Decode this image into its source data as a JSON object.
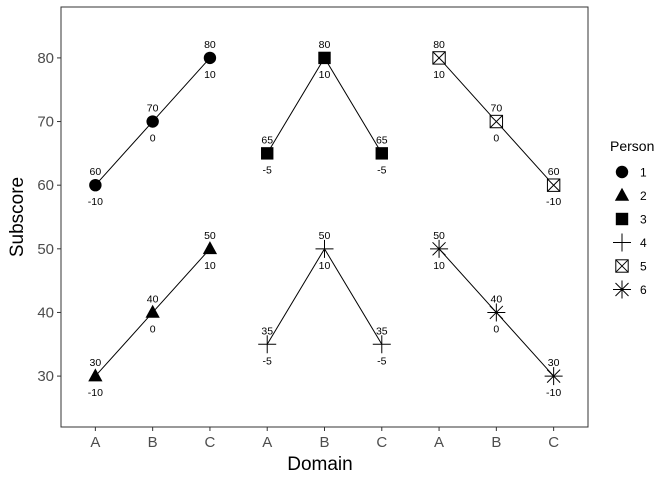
{
  "chart_data": {
    "type": "line",
    "xlabel": "Domain",
    "ylabel": "Subscore",
    "x_categories": [
      "A",
      "B",
      "C",
      "A",
      "B",
      "C",
      "A",
      "B",
      "C"
    ],
    "ylim": [
      22,
      88
    ],
    "yticks": [
      30,
      40,
      50,
      60,
      70,
      80
    ],
    "grid": false,
    "legend": {
      "title": "Person",
      "position": "right",
      "entries": [
        "1",
        "2",
        "3",
        "4",
        "5",
        "6"
      ]
    },
    "series": [
      {
        "name": "1",
        "shape": "circle",
        "x_positions": [
          1,
          2,
          3
        ],
        "domains": [
          "A",
          "B",
          "C"
        ],
        "values": [
          60,
          70,
          80
        ],
        "deviations": [
          -10,
          0,
          10
        ]
      },
      {
        "name": "2",
        "shape": "triangle",
        "x_positions": [
          1,
          2,
          3
        ],
        "domains": [
          "A",
          "B",
          "C"
        ],
        "values": [
          30,
          40,
          50
        ],
        "deviations": [
          -10,
          0,
          10
        ]
      },
      {
        "name": "3",
        "shape": "square",
        "x_positions": [
          4,
          5,
          6
        ],
        "domains": [
          "A",
          "B",
          "C"
        ],
        "values": [
          65,
          80,
          65
        ],
        "deviations": [
          -5,
          10,
          -5
        ]
      },
      {
        "name": "4",
        "shape": "plus",
        "x_positions": [
          4,
          5,
          6
        ],
        "domains": [
          "A",
          "B",
          "C"
        ],
        "values": [
          35,
          50,
          35
        ],
        "deviations": [
          -5,
          10,
          -5
        ]
      },
      {
        "name": "5",
        "shape": "boxed-x",
        "x_positions": [
          7,
          8,
          9
        ],
        "domains": [
          "A",
          "B",
          "C"
        ],
        "values": [
          80,
          70,
          60
        ],
        "deviations": [
          10,
          0,
          -10
        ]
      },
      {
        "name": "6",
        "shape": "asterisk",
        "x_positions": [
          7,
          8,
          9
        ],
        "domains": [
          "A",
          "B",
          "C"
        ],
        "values": [
          50,
          40,
          30
        ],
        "deviations": [
          10,
          0,
          -10
        ]
      }
    ]
  }
}
